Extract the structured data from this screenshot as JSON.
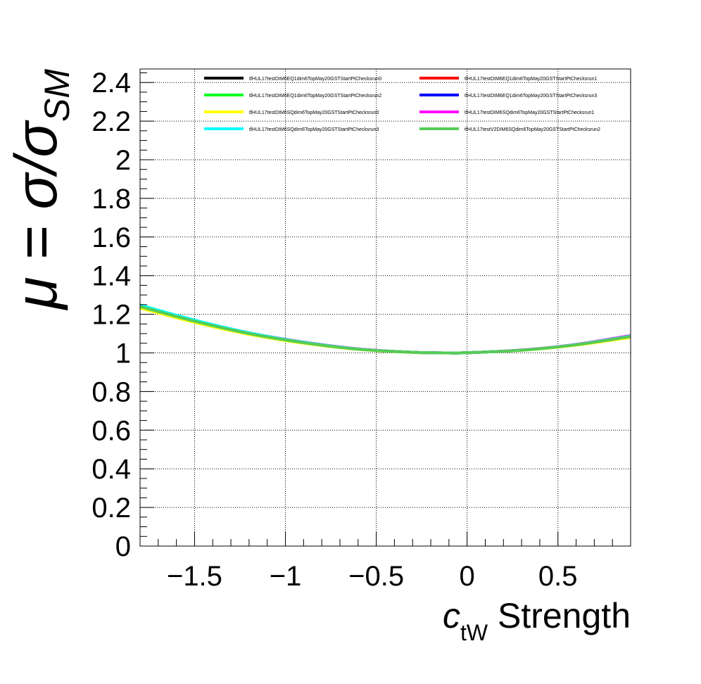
{
  "chart_data": {
    "type": "line",
    "title": "",
    "xlabel": "c_tW Strength",
    "xlabel_parts": {
      "symbol": "c",
      "subscript": "tW",
      "suffix": " Strength"
    },
    "ylabel": "μ = σ/σ_SM",
    "ylabel_parts": {
      "prefix": "μ = σ/σ",
      "subscript": "SM"
    },
    "xlim": [
      -1.8,
      0.9
    ],
    "ylim": [
      0,
      2.47
    ],
    "grid": true,
    "legend_position": "top",
    "legend_columns": 2,
    "x_ticks": [
      {
        "value": -1.5,
        "label": "−1.5"
      },
      {
        "value": -1.0,
        "label": "−1"
      },
      {
        "value": -0.5,
        "label": "−0.5"
      },
      {
        "value": 0.0,
        "label": "0"
      },
      {
        "value": 0.5,
        "label": "0.5"
      }
    ],
    "y_ticks": [
      {
        "value": 0,
        "label": "0"
      },
      {
        "value": 0.2,
        "label": "0.2"
      },
      {
        "value": 0.4,
        "label": "0.4"
      },
      {
        "value": 0.6,
        "label": "0.6"
      },
      {
        "value": 0.8,
        "label": "0.8"
      },
      {
        "value": 1.0,
        "label": "1"
      },
      {
        "value": 1.2,
        "label": "1.2"
      },
      {
        "value": 1.4,
        "label": "1.4"
      },
      {
        "value": 1.6,
        "label": "1.6"
      },
      {
        "value": 1.8,
        "label": "1.8"
      },
      {
        "value": 2.0,
        "label": "2"
      },
      {
        "value": 2.2,
        "label": "2.2"
      },
      {
        "value": 2.4,
        "label": "2.4"
      }
    ],
    "x": [
      -1.8,
      -1.5,
      -1.2,
      -0.9,
      -0.6,
      -0.3,
      -0.1,
      0.0,
      0.3,
      0.6,
      0.9
    ],
    "series": [
      {
        "name": "tt̄HUL17testDIM6EQ1dim6TopMay20GSTStartPtChecksrun0",
        "color": "#000000",
        "values": [
          1.245,
          1.168,
          1.103,
          1.055,
          1.02,
          1.003,
          1.0,
          1.001,
          1.014,
          1.043,
          1.088
        ]
      },
      {
        "name": "tt̄HUL17testDIM6EQ1dim6TopMay20GSTStartPtChecksrun1",
        "color": "#ff0000",
        "values": [
          1.245,
          1.168,
          1.103,
          1.055,
          1.02,
          1.003,
          1.0,
          1.001,
          1.014,
          1.043,
          1.088
        ]
      },
      {
        "name": "tt̄HUL17testDIM6EQ1dim6TopMay20GSTStartPtChecksrun2",
        "color": "#00ff22",
        "values": [
          1.244,
          1.167,
          1.102,
          1.054,
          1.02,
          1.003,
          1.0,
          1.001,
          1.014,
          1.043,
          1.087
        ]
      },
      {
        "name": "tt̄HUL17testDIM6EQ1dim6TopMay20GSTStartPtChecksrun3",
        "color": "#0000ff",
        "values": [
          1.245,
          1.168,
          1.103,
          1.055,
          1.02,
          1.003,
          1.0,
          1.001,
          1.014,
          1.043,
          1.088
        ]
      },
      {
        "name": "tt̄HUL17testDIM6SQdim6TopMay20GSTStartPtChecksrun0",
        "color": "#ffff00",
        "values": [
          1.232,
          1.158,
          1.096,
          1.05,
          1.018,
          1.002,
          1.0,
          1.001,
          1.013,
          1.04,
          1.08
        ]
      },
      {
        "name": "tt̄HUL17testDIM6SQdim6TopMay20GSTStartPtChecksrun1",
        "color": "#ff00ff",
        "values": [
          1.246,
          1.169,
          1.104,
          1.056,
          1.021,
          1.003,
          1.0,
          1.001,
          1.015,
          1.044,
          1.09
        ]
      },
      {
        "name": "tt̄HUL17testDIM6SQdim6TopMay20GSTStartPtChecksrun3",
        "color": "#00ffff",
        "values": [
          1.248,
          1.17,
          1.104,
          1.055,
          1.02,
          1.003,
          1.0,
          1.001,
          1.014,
          1.043,
          1.087
        ]
      },
      {
        "name": "tt̄HUL17testV2DIM6SQdim6TopMay20GSTStartPtChecksrun2",
        "color": "#55cc55",
        "values": [
          1.24,
          1.164,
          1.1,
          1.053,
          1.019,
          1.003,
          1.0,
          1.001,
          1.014,
          1.042,
          1.085
        ]
      }
    ]
  }
}
